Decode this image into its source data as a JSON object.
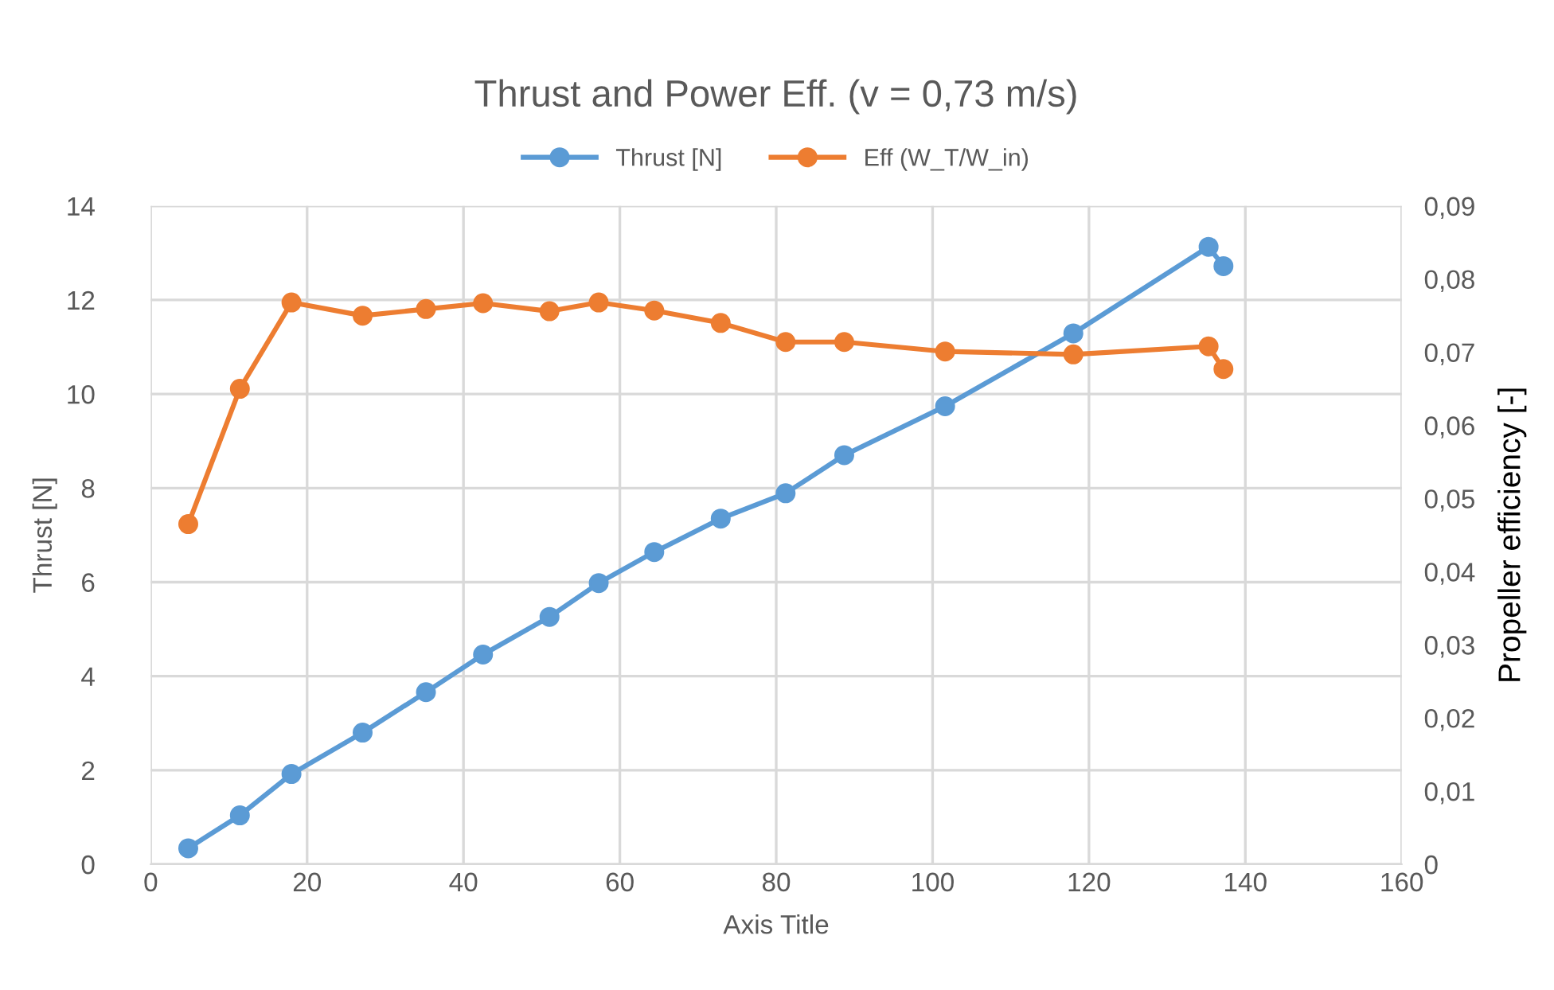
{
  "chart_data": {
    "type": "line",
    "title": "Thrust and Power Eff. (v = 0,73 m/s)",
    "xlabel": "Axis Title",
    "ylabel": "Thrust [N]",
    "y2label": "Propeller efficiency [-]",
    "x": [
      4.8,
      11.4,
      18.0,
      27.1,
      35.2,
      42.5,
      51.0,
      57.3,
      64.4,
      72.9,
      81.2,
      88.7,
      101.6,
      118.0,
      135.3,
      137.2
    ],
    "series": [
      {
        "name": "Thrust [N]",
        "color": "#5b9bd5",
        "values": [
          0.34,
          1.04,
          1.92,
          2.8,
          3.66,
          4.46,
          5.26,
          5.98,
          6.64,
          7.35,
          7.89,
          8.7,
          9.74,
          11.29,
          13.13,
          12.72
        ]
      },
      {
        "name": "Eff (W_T/W_in)",
        "color": "#ed7d31",
        "axis": "y2",
        "values": [
          0.0465,
          0.065,
          0.0768,
          0.075,
          0.0759,
          0.0767,
          0.0756,
          0.0768,
          0.0757,
          0.074,
          0.0714,
          0.0714,
          0.0701,
          0.0697,
          0.0708,
          0.0677
        ]
      }
    ],
    "xlim": [
      0,
      160
    ],
    "xticks": [
      0,
      20,
      40,
      60,
      80,
      100,
      120,
      140,
      160
    ],
    "ylim": [
      0,
      14
    ],
    "yticks": [
      0,
      2,
      4,
      6,
      8,
      10,
      12,
      14
    ],
    "y2lim": [
      0,
      0.09
    ],
    "y2ticks": [
      {
        "value": 0,
        "label": "0"
      },
      {
        "value": 0.01,
        "label": "0,01"
      },
      {
        "value": 0.02,
        "label": "0,02"
      },
      {
        "value": 0.03,
        "label": "0,03"
      },
      {
        "value": 0.04,
        "label": "0,04"
      },
      {
        "value": 0.05,
        "label": "0,05"
      },
      {
        "value": 0.06,
        "label": "0,06"
      },
      {
        "value": 0.07,
        "label": "0,07"
      },
      {
        "value": 0.08,
        "label": "0,08"
      },
      {
        "value": 0.09,
        "label": "0,09"
      }
    ],
    "grid": true,
    "legend": "top",
    "marker": "circle",
    "line_style": "solid"
  }
}
